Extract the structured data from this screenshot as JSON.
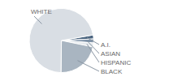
{
  "chart_data": {
    "type": "pie",
    "categories": [
      "A.I.",
      "ASIAN",
      "HISPANIC",
      "BLACK",
      "WHITE"
    ],
    "values": [
      2,
      2,
      2,
      22,
      72
    ],
    "colors": [
      "#4b6580",
      "#7e92a8",
      "#e6eaee",
      "#a9b5c1",
      "#d9dee4"
    ]
  }
}
